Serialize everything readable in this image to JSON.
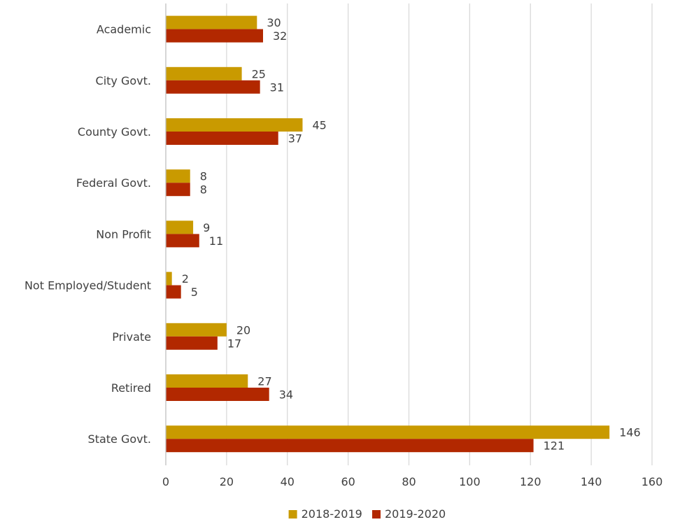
{
  "chart_data": {
    "type": "bar",
    "orientation": "horizontal",
    "categories": [
      "Academic",
      "City Govt.",
      "County Govt.",
      "Federal Govt.",
      "Non Profit",
      "Not Employed/Student",
      "Private",
      "Retired",
      "State Govt."
    ],
    "series": [
      {
        "name": "2018-2019",
        "color": "#c99a00",
        "values": [
          30,
          25,
          45,
          8,
          9,
          2,
          20,
          27,
          146
        ]
      },
      {
        "name": "2019-2020",
        "color": "#b22800",
        "values": [
          32,
          31,
          37,
          8,
          11,
          5,
          17,
          34,
          121
        ]
      }
    ],
    "title": "",
    "xlabel": "",
    "ylabel": "",
    "xlim": [
      0,
      160
    ],
    "xticks": [
      0,
      20,
      40,
      60,
      80,
      100,
      120,
      140,
      160
    ],
    "grid": true,
    "legend_position": "bottom",
    "data_labels": true
  }
}
